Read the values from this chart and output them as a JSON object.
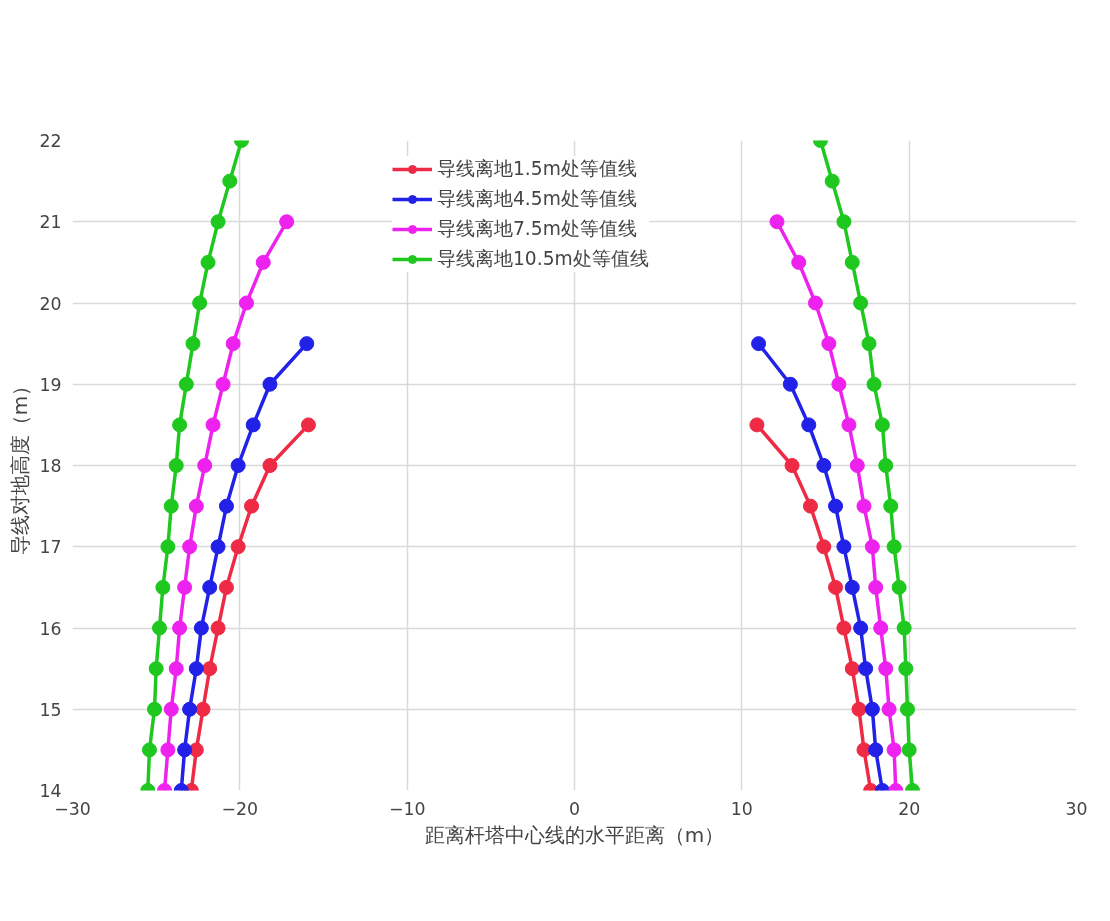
{
  "chart_data": {
    "type": "line",
    "xlabel": "距离杆塔中心线的水平距离（m）",
    "ylabel": "导线对地高度（m）",
    "xlim": [
      -30,
      30
    ],
    "ylim": [
      14,
      22
    ],
    "xticks": [
      -30,
      -20,
      -10,
      0,
      10,
      20,
      30
    ],
    "yticks": [
      14,
      15,
      16,
      17,
      18,
      19,
      20,
      21,
      22
    ],
    "grid": true,
    "legend": "top",
    "marker": "circle",
    "line_style": "solid",
    "series": [
      {
        "name": "导线离地1.5m处等值线",
        "color": "#ee2a45",
        "x": [
          -22.9,
          -22.6,
          -22.2,
          -21.8,
          -21.3,
          -20.8,
          -20.1,
          -19.3,
          -18.2,
          -15.9
        ],
        "values": [
          14,
          14.5,
          15,
          15.5,
          16,
          16.5,
          17,
          17.5,
          18,
          18.5
        ]
      },
      {
        "name": "导线离地4.5m处等值线",
        "color": "#2121e8",
        "x": [
          -23.5,
          -23.3,
          -23.0,
          -22.6,
          -22.3,
          -21.8,
          -21.3,
          -20.8,
          -20.1,
          -19.2,
          -18.2,
          -16.0
        ],
        "values": [
          14,
          14.5,
          15,
          15.5,
          16,
          16.5,
          17,
          17.5,
          18,
          18.5,
          19,
          19.5
        ]
      },
      {
        "name": "导线离地7.5m处等值线",
        "color": "#ee22ee",
        "x": [
          -24.5,
          -24.3,
          -24.1,
          -23.8,
          -23.6,
          -23.3,
          -23.0,
          -22.6,
          -22.1,
          -21.6,
          -21.0,
          -20.4,
          -19.6,
          -18.6,
          -17.2
        ],
        "values": [
          14,
          14.5,
          15,
          15.5,
          16,
          16.5,
          17,
          17.5,
          18,
          18.5,
          19,
          19.5,
          20,
          20.5,
          21
        ]
      },
      {
        "name": "导线离地10.5m处等值线",
        "color": "#1ec81e",
        "x": [
          -25.5,
          -25.4,
          -25.1,
          -25.0,
          -24.8,
          -24.6,
          -24.3,
          -24.1,
          -23.8,
          -23.6,
          -23.2,
          -22.8,
          -22.4,
          -21.9,
          -21.3,
          -20.6,
          -19.9
        ],
        "values": [
          14,
          14.5,
          15,
          15.5,
          16,
          16.5,
          17,
          17.5,
          18,
          18.5,
          19,
          19.5,
          20,
          20.5,
          21,
          21.5,
          22
        ]
      },
      {
        "color": "#ee2a45",
        "x": [
          17.7,
          17.3,
          17.0,
          16.6,
          16.1,
          15.6,
          14.9,
          14.1,
          13.0,
          10.9
        ],
        "values": [
          14,
          14.5,
          15,
          15.5,
          16,
          16.5,
          17,
          17.5,
          18,
          18.5
        ]
      },
      {
        "color": "#2121e8",
        "x": [
          18.4,
          18.0,
          17.8,
          17.4,
          17.1,
          16.6,
          16.1,
          15.6,
          14.9,
          14.0,
          12.9,
          11.0
        ],
        "values": [
          14,
          14.5,
          15,
          15.5,
          16,
          16.5,
          17,
          17.5,
          18,
          18.5,
          19,
          19.5
        ]
      },
      {
        "color": "#ee22ee",
        "x": [
          19.2,
          19.1,
          18.8,
          18.6,
          18.3,
          18.0,
          17.8,
          17.3,
          16.9,
          16.4,
          15.8,
          15.2,
          14.4,
          13.4,
          12.1
        ],
        "values": [
          14,
          14.5,
          15,
          15.5,
          16,
          16.5,
          17,
          17.5,
          18,
          18.5,
          19,
          19.5,
          20,
          20.5,
          21
        ]
      },
      {
        "color": "#1ec81e",
        "x": [
          20.2,
          20.0,
          19.9,
          19.8,
          19.7,
          19.4,
          19.1,
          18.9,
          18.6,
          18.4,
          17.9,
          17.6,
          17.1,
          16.6,
          16.1,
          15.4,
          14.7
        ],
        "values": [
          14,
          14.5,
          15,
          15.5,
          16,
          16.5,
          17,
          17.5,
          18,
          18.5,
          19,
          19.5,
          20,
          20.5,
          21,
          21.5,
          22
        ]
      }
    ]
  }
}
